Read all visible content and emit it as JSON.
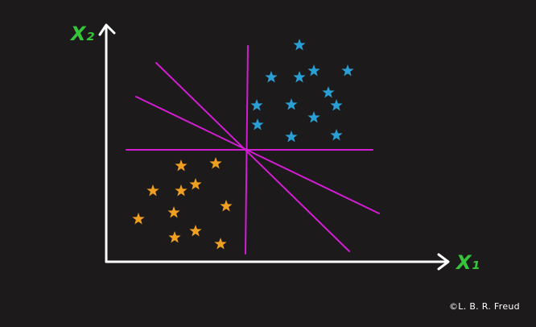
{
  "labels": {
    "x1": "X₁",
    "x2": "X₂"
  },
  "credit": "©L. B. R. Freud",
  "colors": {
    "background": "#1c1a1a",
    "axis": "#ffffff",
    "axis_label": "#36c43a",
    "hyperplane": "#d21dd2",
    "class_a": "#2a9fd6",
    "class_b": "#f0a020"
  },
  "icons": {
    "point_marker": "star-icon"
  }
}
